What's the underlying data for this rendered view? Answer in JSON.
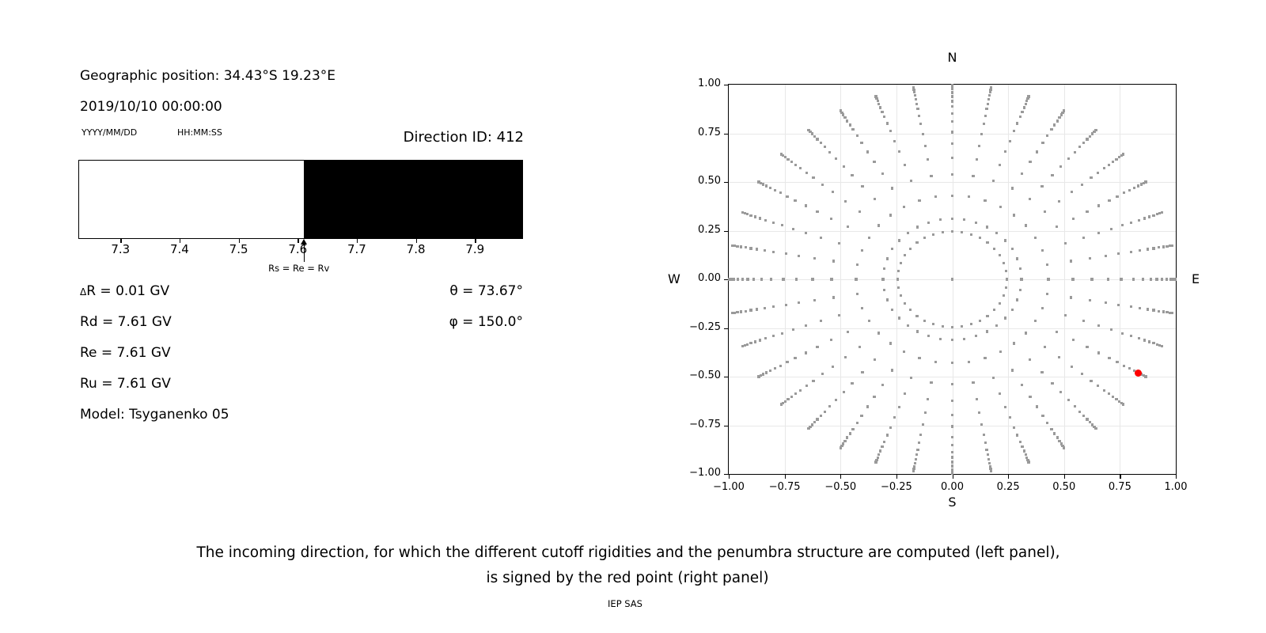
{
  "left_panel": {
    "geo_position": "Geographic position: 34.43°S 19.23°E",
    "datetime": "2019/10/10 00:00:00",
    "date_format_label": "YYYY/MM/DD",
    "time_format_label": "HH:MM:SS",
    "direction_id": "Direction ID: 412",
    "parameters": {
      "delta_symbol": "Δ",
      "delta_r_rest": "R = 0.01 GV",
      "rd": "Rd = 7.61 GV",
      "re": "Re = 7.61 GV",
      "ru": "Ru = 7.61 GV",
      "model": "Model: Tsyganenko 05",
      "theta": "θ = 73.67°",
      "phi": "φ = 150.0°"
    }
  },
  "caption": {
    "line1": "The incoming direction, for which the different cutoff rigidities and the penumbra structure are computed (left panel),",
    "line2": "is signed by the red point (right panel)",
    "credit": "IEP SAS"
  },
  "colors": {
    "dot_gray": "#9a9a9a",
    "red_point": "#ff0000",
    "grid": "#e8e8e8",
    "bar_forbidden": "#000000",
    "bar_allowed": "#ffffff"
  },
  "chart_data": [
    {
      "type": "bar",
      "panel": "penumbra-structure",
      "xlim": [
        7.23,
        7.98
      ],
      "xticks": [
        7.3,
        7.4,
        7.5,
        7.6,
        7.7,
        7.8,
        7.9
      ],
      "xtick_labels": [
        "7.3",
        "7.4",
        "7.5",
        "7.6",
        "7.7",
        "7.8",
        "7.9"
      ],
      "unit": "GV",
      "segments": [
        {
          "from": 7.23,
          "to": 7.61,
          "color": "#ffffff"
        },
        {
          "from": 7.61,
          "to": 7.98,
          "color": "#000000"
        }
      ],
      "annotation": {
        "value": 7.61,
        "label": "Rs = Re = Rv"
      }
    },
    {
      "type": "scatter",
      "panel": "incoming-direction-map",
      "xlim": [
        -1.0,
        1.0
      ],
      "ylim": [
        -1.0,
        1.0
      ],
      "xtick_labels": [
        "−1.00",
        "−0.75",
        "−0.50",
        "−0.25",
        "0.00",
        "0.25",
        "0.50",
        "0.75",
        "1.00"
      ],
      "ytick_labels_top_to_bottom": [
        "1.00",
        "0.75",
        "0.50",
        "0.25",
        "0.00",
        "−0.25",
        "−0.50",
        "−0.75",
        "−1.00"
      ],
      "grid": true,
      "compass": {
        "top": "N",
        "bottom": "S",
        "left": "W",
        "right": "E"
      },
      "rays": {
        "azimuth_start_deg": 0,
        "azimuth_step_deg": 10,
        "azimuth_count": 36,
        "radii": [
          0.245,
          0.31,
          0.43,
          0.54,
          0.625,
          0.697,
          0.756,
          0.811,
          0.852,
          0.888,
          0.915,
          0.939,
          0.959,
          0.976,
          0.988,
          0.9995
        ]
      },
      "center_dot": {
        "x": 0.0,
        "y": 0.0
      },
      "red_point": {
        "x": 0.831,
        "y": -0.48
      }
    }
  ]
}
